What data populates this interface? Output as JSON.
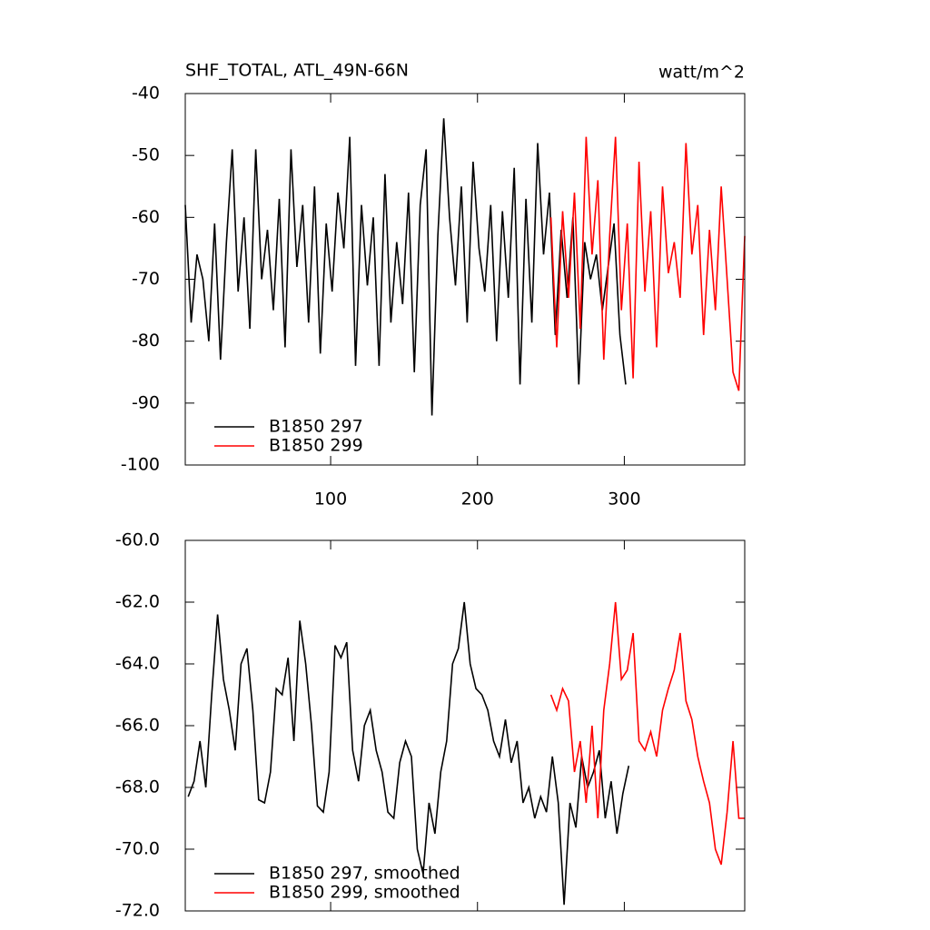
{
  "chart_data": [
    {
      "type": "line",
      "title": "SHF_TOTAL, ATL_49N-66N",
      "units_label": "watt/m^2",
      "xlim": [
        1,
        382
      ],
      "xticks": [
        100,
        200,
        300
      ],
      "show_xtick_labels": true,
      "ylim": [
        -100,
        -40
      ],
      "yticks": [
        -100,
        -90,
        -80,
        -70,
        -60,
        -50,
        -40
      ],
      "series": [
        {
          "name": "B1850 297",
          "color": "#000000",
          "x": [
            1,
            5,
            9,
            13,
            17,
            21,
            25,
            29,
            33,
            37,
            41,
            45,
            49,
            53,
            57,
            61,
            65,
            69,
            73,
            77,
            81,
            85,
            89,
            93,
            97,
            101,
            105,
            109,
            113,
            117,
            121,
            125,
            129,
            133,
            137,
            141,
            145,
            149,
            153,
            157,
            161,
            165,
            169,
            173,
            177,
            181,
            185,
            189,
            193,
            197,
            201,
            205,
            209,
            213,
            217,
            221,
            225,
            229,
            233,
            237,
            241,
            245,
            249,
            253,
            257,
            261,
            265,
            269,
            273,
            277,
            281,
            285,
            289,
            293,
            297,
            301
          ],
          "values": [
            -58,
            -77,
            -66,
            -70,
            -80,
            -61,
            -83,
            -64,
            -49,
            -72,
            -60,
            -78,
            -49,
            -70,
            -62,
            -75,
            -57,
            -81,
            -49,
            -68,
            -58,
            -77,
            -55,
            -82,
            -61,
            -72,
            -56,
            -65,
            -47,
            -84,
            -58,
            -71,
            -60,
            -84,
            -53,
            -77,
            -64,
            -74,
            -56,
            -85,
            -58,
            -49,
            -92,
            -63,
            -44,
            -60,
            -71,
            -55,
            -77,
            -51,
            -65,
            -72,
            -58,
            -80,
            -59,
            -73,
            -52,
            -87,
            -57,
            -77,
            -48,
            -66,
            -56,
            -79,
            -62,
            -73,
            -60,
            -87,
            -64,
            -70,
            -66,
            -75,
            -68,
            -61,
            -79,
            -87
          ]
        },
        {
          "name": "B1850 299",
          "color": "#ff0000",
          "x": [
            250,
            254,
            258,
            262,
            266,
            270,
            274,
            278,
            282,
            286,
            290,
            294,
            298,
            302,
            306,
            310,
            314,
            318,
            322,
            326,
            330,
            334,
            338,
            342,
            346,
            350,
            354,
            358,
            362,
            366,
            370,
            374,
            378,
            382
          ],
          "values": [
            -60,
            -81,
            -59,
            -73,
            -56,
            -78,
            -47,
            -66,
            -54,
            -83,
            -63,
            -47,
            -75,
            -61,
            -86,
            -51,
            -72,
            -59,
            -81,
            -55,
            -69,
            -64,
            -73,
            -48,
            -66,
            -58,
            -79,
            -62,
            -75,
            -55,
            -70,
            -85,
            -88,
            -63
          ]
        }
      ]
    },
    {
      "type": "line",
      "xlim": [
        1,
        382
      ],
      "xticks": [
        100,
        200,
        300
      ],
      "show_xtick_labels": false,
      "ylim": [
        -72,
        -60
      ],
      "yticks": [
        {
          "value": -72,
          "label": "-72.0"
        },
        {
          "value": -70,
          "label": "-70.0"
        },
        {
          "value": -68,
          "label": "-68.0"
        },
        {
          "value": -66,
          "label": "-66.0"
        },
        {
          "value": -64,
          "label": "-64.0"
        },
        {
          "value": -62,
          "label": "-62.0"
        },
        {
          "value": -60,
          "label": "-60.0"
        }
      ],
      "series": [
        {
          "name": "B1850 297, smoothed",
          "color": "#000000",
          "x": [
            3,
            7,
            11,
            15,
            19,
            23,
            27,
            31,
            35,
            39,
            43,
            47,
            51,
            55,
            59,
            63,
            67,
            71,
            75,
            79,
            83,
            87,
            91,
            95,
            99,
            103,
            107,
            111,
            115,
            119,
            123,
            127,
            131,
            135,
            139,
            143,
            147,
            151,
            155,
            159,
            163,
            167,
            171,
            175,
            179,
            183,
            187,
            191,
            195,
            199,
            203,
            207,
            211,
            215,
            219,
            223,
            227,
            231,
            235,
            239,
            243,
            247,
            251,
            255,
            259,
            263,
            267,
            271,
            275,
            279,
            283,
            287,
            291,
            295,
            299,
            303
          ],
          "values": [
            -68.3,
            -67.8,
            -66.5,
            -68.0,
            -65.0,
            -62.4,
            -64.5,
            -65.5,
            -66.8,
            -64.0,
            -63.5,
            -65.5,
            -68.4,
            -68.5,
            -67.5,
            -64.8,
            -65.0,
            -63.8,
            -66.5,
            -62.6,
            -64.0,
            -66.0,
            -68.6,
            -68.8,
            -67.5,
            -63.4,
            -63.8,
            -63.3,
            -66.8,
            -67.8,
            -66.0,
            -65.5,
            -66.8,
            -67.5,
            -68.8,
            -69.0,
            -67.2,
            -66.5,
            -67.0,
            -70.0,
            -70.8,
            -68.5,
            -69.5,
            -67.5,
            -66.5,
            -64.0,
            -63.5,
            -62.0,
            -64.0,
            -64.8,
            -65.0,
            -65.5,
            -66.5,
            -67.0,
            -65.8,
            -67.2,
            -66.5,
            -68.5,
            -68.0,
            -69.0,
            -68.3,
            -68.8,
            -67.0,
            -68.5,
            -71.8,
            -68.5,
            -69.3,
            -67.0,
            -68.0,
            -67.5,
            -66.8,
            -69.0,
            -67.8,
            -69.5,
            -68.2,
            -67.3
          ]
        },
        {
          "name": "B1850 299, smoothed",
          "color": "#ff0000",
          "x": [
            250,
            254,
            258,
            262,
            266,
            270,
            274,
            278,
            282,
            286,
            290,
            294,
            298,
            302,
            306,
            310,
            314,
            318,
            322,
            326,
            330,
            334,
            338,
            342,
            346,
            350,
            354,
            358,
            362,
            366,
            370,
            374,
            378,
            382
          ],
          "values": [
            -65.0,
            -65.5,
            -64.8,
            -65.2,
            -67.5,
            -66.5,
            -68.5,
            -66.0,
            -69.0,
            -65.5,
            -64.0,
            -62.0,
            -64.5,
            -64.2,
            -63.0,
            -66.5,
            -66.8,
            -66.2,
            -67.0,
            -65.5,
            -64.8,
            -64.2,
            -63.0,
            -65.2,
            -65.8,
            -67.0,
            -67.8,
            -68.5,
            -70.0,
            -70.5,
            -68.8,
            -66.5,
            -69.0,
            -69.0
          ]
        }
      ]
    }
  ]
}
